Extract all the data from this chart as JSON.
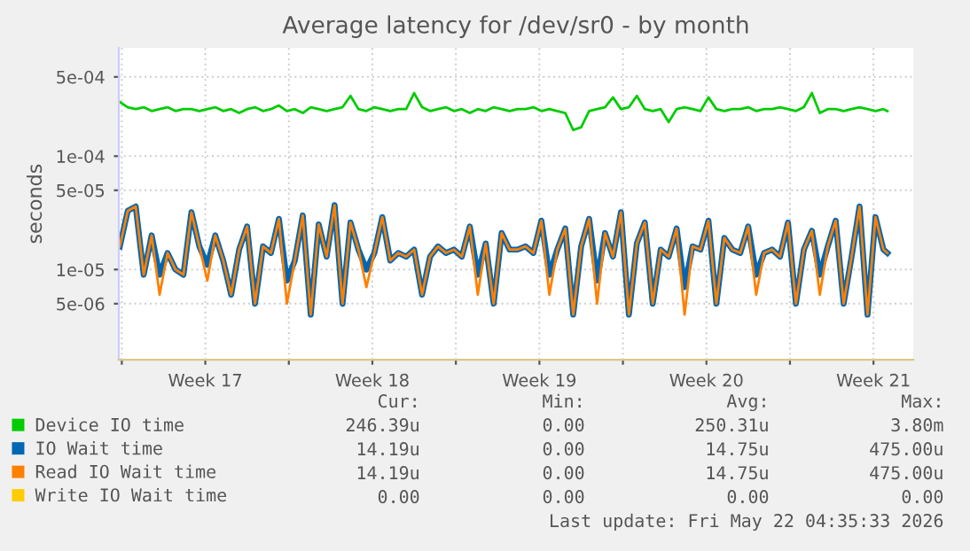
{
  "chart_data": {
    "type": "line",
    "title": "Average latency for /dev/sr0 - by month",
    "ylabel": "seconds",
    "log": "y",
    "ylim": [
      1.6e-06,
      0.0009
    ],
    "yticks": [
      {
        "value": 5e-06,
        "label": "5e-06"
      },
      {
        "value": 1e-05,
        "label": "1e-05"
      },
      {
        "value": 5e-05,
        "label": "5e-05"
      },
      {
        "value": 0.0001,
        "label": "1e-04"
      },
      {
        "value": 0.0005,
        "label": "5e-04"
      }
    ],
    "xlim": [
      "2026-04-19T21:00",
      "2026-05-23T04:00"
    ],
    "xticks": [
      {
        "value": "2026-04-20T00:00",
        "label": null
      },
      {
        "value": "2026-04-23T12:00",
        "label": "Week 17"
      },
      {
        "value": "2026-04-27T00:00",
        "label": null
      },
      {
        "value": "2026-04-30T12:00",
        "label": "Week 18"
      },
      {
        "value": "2026-05-04T00:00",
        "label": null
      },
      {
        "value": "2026-05-07T12:00",
        "label": "Week 19"
      },
      {
        "value": "2026-05-11T00:00",
        "label": null
      },
      {
        "value": "2026-05-14T12:00",
        "label": "Week 20"
      },
      {
        "value": "2026-05-18T00:00",
        "label": null
      },
      {
        "value": "2026-05-21T12:00",
        "label": "Week 21"
      }
    ],
    "grid": true,
    "legend": "bottom",
    "x": [
      "2026-04-19T22:00",
      "2026-04-20T06:00",
      "2026-04-20T14:00",
      "2026-04-20T22:00",
      "2026-04-21T06:00",
      "2026-04-21T14:00",
      "2026-04-21T22:00",
      "2026-04-22T06:00",
      "2026-04-22T14:00",
      "2026-04-22T22:00",
      "2026-04-23T06:00",
      "2026-04-23T14:00",
      "2026-04-23T22:00",
      "2026-04-24T06:00",
      "2026-04-24T14:00",
      "2026-04-24T22:00",
      "2026-04-25T06:00",
      "2026-04-25T14:00",
      "2026-04-25T22:00",
      "2026-04-26T06:00",
      "2026-04-26T14:00",
      "2026-04-26T22:00",
      "2026-04-27T06:00",
      "2026-04-27T14:00",
      "2026-04-27T22:00",
      "2026-04-28T06:00",
      "2026-04-28T14:00",
      "2026-04-28T22:00",
      "2026-04-29T06:00",
      "2026-04-29T14:00",
      "2026-04-29T22:00",
      "2026-04-30T06:00",
      "2026-04-30T14:00",
      "2026-04-30T22:00",
      "2026-05-01T06:00",
      "2026-05-01T14:00",
      "2026-05-01T22:00",
      "2026-05-02T06:00",
      "2026-05-02T14:00",
      "2026-05-02T22:00",
      "2026-05-03T06:00",
      "2026-05-03T14:00",
      "2026-05-03T22:00",
      "2026-05-04T06:00",
      "2026-05-04T14:00",
      "2026-05-04T22:00",
      "2026-05-05T06:00",
      "2026-05-05T14:00",
      "2026-05-05T22:00",
      "2026-05-06T06:00",
      "2026-05-06T14:00",
      "2026-05-06T22:00",
      "2026-05-07T06:00",
      "2026-05-07T14:00",
      "2026-05-07T22:00",
      "2026-05-08T06:00",
      "2026-05-08T14:00",
      "2026-05-08T22:00",
      "2026-05-09T06:00",
      "2026-05-09T14:00",
      "2026-05-09T22:00",
      "2026-05-10T06:00",
      "2026-05-10T14:00",
      "2026-05-10T22:00",
      "2026-05-11T06:00",
      "2026-05-11T14:00",
      "2026-05-11T22:00",
      "2026-05-12T06:00",
      "2026-05-12T14:00",
      "2026-05-12T22:00",
      "2026-05-13T06:00",
      "2026-05-13T14:00",
      "2026-05-13T22:00",
      "2026-05-14T06:00",
      "2026-05-14T14:00",
      "2026-05-14T22:00",
      "2026-05-15T06:00",
      "2026-05-15T14:00",
      "2026-05-15T22:00",
      "2026-05-16T06:00",
      "2026-05-16T14:00",
      "2026-05-16T22:00",
      "2026-05-17T06:00",
      "2026-05-17T14:00",
      "2026-05-17T22:00",
      "2026-05-18T06:00",
      "2026-05-18T14:00",
      "2026-05-18T22:00",
      "2026-05-19T06:00",
      "2026-05-19T14:00",
      "2026-05-19T22:00",
      "2026-05-20T06:00",
      "2026-05-20T14:00",
      "2026-05-20T22:00",
      "2026-05-21T06:00",
      "2026-05-21T14:00",
      "2026-05-21T22:00",
      "2026-05-22T02:00"
    ],
    "series": [
      {
        "name": "Device IO time",
        "color": "#00cc00",
        "values": [
          0.0003,
          0.00027,
          0.00026,
          0.00027,
          0.00025,
          0.00026,
          0.00027,
          0.00025,
          0.00026,
          0.00026,
          0.00025,
          0.00026,
          0.00027,
          0.00025,
          0.00026,
          0.00024,
          0.00026,
          0.00027,
          0.00025,
          0.00026,
          0.00028,
          0.00025,
          0.00026,
          0.00024,
          0.00027,
          0.00026,
          0.00025,
          0.00026,
          0.00027,
          0.00034,
          0.00026,
          0.00025,
          0.00027,
          0.00026,
          0.00025,
          0.00026,
          0.00026,
          0.00036,
          0.00027,
          0.00025,
          0.00026,
          0.00027,
          0.00025,
          0.00026,
          0.00024,
          0.00026,
          0.00025,
          0.00027,
          0.00026,
          0.00025,
          0.00026,
          0.00026,
          0.00027,
          0.00025,
          0.00026,
          0.00025,
          0.00024,
          0.00017,
          0.00018,
          0.00025,
          0.00026,
          0.00027,
          0.00033,
          0.00026,
          0.00027,
          0.00034,
          0.00026,
          0.00025,
          0.00026,
          0.0002,
          0.00026,
          0.00027,
          0.00026,
          0.00025,
          0.00033,
          0.00026,
          0.00025,
          0.00026,
          0.00026,
          0.00027,
          0.00025,
          0.00026,
          0.00026,
          0.00027,
          0.00026,
          0.00025,
          0.00027,
          0.00036,
          0.00024,
          0.00026,
          0.00026,
          0.00025,
          0.00026,
          0.00027,
          0.00026,
          0.00025,
          0.00026,
          0.00025
        ]
      },
      {
        "name": "IO Wait time",
        "color": "#0066b3",
        "values": [
          1.6e-05,
          3.3e-05,
          3.6e-05,
          9e-06,
          2e-05,
          9e-06,
          1.4e-05,
          1e-05,
          9e-06,
          3.2e-05,
          1.6e-05,
          1.1e-05,
          2e-05,
          1.2e-05,
          6e-06,
          1.5e-05,
          2.4e-05,
          5e-06,
          1.6e-05,
          1.4e-05,
          2.8e-05,
          8e-06,
          1.2e-05,
          3e-05,
          4e-06,
          2.5e-05,
          1.3e-05,
          3.7e-05,
          5e-06,
          2.6e-05,
          1.5e-05,
          1e-05,
          1.4e-05,
          2.9e-05,
          1.2e-05,
          1.4e-05,
          1.3e-05,
          1.5e-05,
          6e-06,
          1.3e-05,
          1.6e-05,
          1.4e-05,
          1.5e-05,
          1.3e-05,
          2.4e-05,
          9e-06,
          1.7e-05,
          5e-06,
          2.1e-05,
          1.5e-05,
          1.5e-05,
          1.6e-05,
          1.4e-05,
          2.7e-05,
          9e-06,
          1.5e-05,
          2.3e-05,
          4e-06,
          1.6e-05,
          2.8e-05,
          8e-06,
          2.1e-05,
          1.3e-05,
          3.2e-05,
          4e-06,
          1.7e-05,
          2.6e-05,
          5e-06,
          1.5e-05,
          1.3e-05,
          2.3e-05,
          7e-06,
          1.6e-05,
          1.5e-05,
          2.7e-05,
          5e-06,
          1.9e-05,
          1.5e-05,
          1.4e-05,
          2.4e-05,
          9e-06,
          1.4e-05,
          1.5e-05,
          1.3e-05,
          2.6e-05,
          5e-06,
          1.5e-05,
          2.2e-05,
          9e-06,
          1.6e-05,
          2.7e-05,
          5e-06,
          1.3e-05,
          3.6e-05,
          4e-06,
          2.9e-05,
          1.5e-05,
          1.4e-05
        ]
      },
      {
        "name": "Read IO Wait time",
        "color": "#ff8000",
        "values": [
          1.6e-05,
          3.3e-05,
          3.6e-05,
          9e-06,
          2e-05,
          6e-06,
          1.4e-05,
          1e-05,
          9e-06,
          3.2e-05,
          1.6e-05,
          8e-06,
          2e-05,
          1.2e-05,
          6e-06,
          1.5e-05,
          2.4e-05,
          5e-06,
          1.6e-05,
          1.4e-05,
          2.8e-05,
          5e-06,
          1.2e-05,
          3e-05,
          4e-06,
          2.5e-05,
          1.3e-05,
          3.7e-05,
          5e-06,
          2.6e-05,
          1.5e-05,
          7e-06,
          1.4e-05,
          2.9e-05,
          1.2e-05,
          1.4e-05,
          1.3e-05,
          1.5e-05,
          6e-06,
          1.3e-05,
          1.6e-05,
          1.4e-05,
          1.5e-05,
          1.3e-05,
          2.4e-05,
          6e-06,
          1.7e-05,
          5e-06,
          2.1e-05,
          1.5e-05,
          1.5e-05,
          1.6e-05,
          1.4e-05,
          2.7e-05,
          6e-06,
          1.5e-05,
          2.3e-05,
          4e-06,
          1.6e-05,
          2.8e-05,
          5e-06,
          2.1e-05,
          1.3e-05,
          3.2e-05,
          4e-06,
          1.7e-05,
          2.6e-05,
          5e-06,
          1.5e-05,
          1.3e-05,
          2.3e-05,
          4e-06,
          1.6e-05,
          1.5e-05,
          2.7e-05,
          5e-06,
          1.9e-05,
          1.5e-05,
          1.4e-05,
          2.4e-05,
          6e-06,
          1.4e-05,
          1.5e-05,
          1.3e-05,
          2.6e-05,
          5e-06,
          1.5e-05,
          2.2e-05,
          6e-06,
          1.6e-05,
          2.7e-05,
          5e-06,
          1.3e-05,
          3.6e-05,
          4e-06,
          2.9e-05,
          1.5e-05,
          1.4e-05
        ]
      },
      {
        "name": "Write IO Wait time",
        "color": "#ffcc00",
        "values": [
          null,
          null,
          null,
          null,
          null,
          null,
          null,
          null,
          null,
          null,
          null,
          null,
          null,
          null,
          null,
          null,
          null,
          null,
          null,
          null,
          null,
          null,
          null,
          null,
          null,
          null,
          null,
          null,
          null,
          null,
          null,
          null,
          null,
          null,
          null,
          null,
          null,
          null,
          null,
          null,
          null,
          null,
          null,
          null,
          null,
          null,
          null,
          null,
          null,
          null,
          null,
          null,
          null,
          null,
          null,
          null,
          null,
          null,
          null,
          null,
          null,
          null,
          null,
          null,
          null,
          null,
          null,
          null,
          null,
          null,
          null,
          null,
          null,
          null,
          null,
          null,
          null,
          null,
          null,
          null,
          null,
          null,
          null,
          null,
          null,
          null,
          null,
          null,
          null,
          null,
          null,
          null,
          null,
          null,
          null,
          null,
          null,
          null
        ]
      }
    ],
    "annotations": [
      "Cur:",
      "Min:",
      "Avg:",
      "Max:",
      "246.39u",
      "0.00",
      "250.31u",
      "3.80m",
      "14.19u",
      "0.00",
      "14.75u",
      "475.00u",
      "14.19u",
      "0.00",
      "14.75u",
      "475.00u",
      "0.00",
      "0.00",
      "0.00",
      "0.00",
      "Last update: Fri May 22 04:35:33 2026"
    ]
  }
}
